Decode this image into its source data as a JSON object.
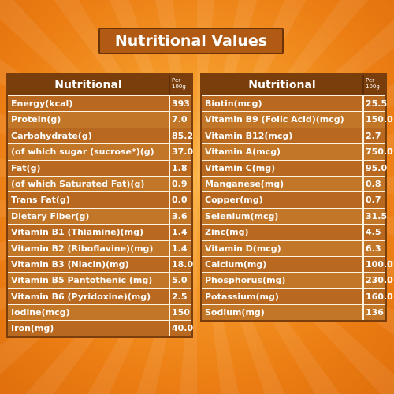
{
  "title": "Nutritional Values",
  "left_table": {
    "header": "Nutritional",
    "per_label": "Per 100g",
    "rows": [
      {
        "name": "Energy(kcal)",
        "value": "393"
      },
      {
        "name": "Protein(g)",
        "value": "7.0"
      },
      {
        "name": "Carbohydrate(g)",
        "value": "85.2"
      },
      {
        "name": "(of which sugar (sucrose*)(g)",
        "value": "37.0"
      },
      {
        "name": "Fat(g)",
        "value": "1.8"
      },
      {
        "name": "(of which Saturated Fat)(g)",
        "value": "0.9"
      },
      {
        "name": "Trans Fat(g)",
        "value": "0.0"
      },
      {
        "name": "Dietary Fiber(g)",
        "value": "3.6"
      },
      {
        "name": "Vitamin B1 (Thiamine)(mg)",
        "value": "1.4"
      },
      {
        "name": "Vitamin B2 (Riboflavine)(mg)",
        "value": "1.4"
      },
      {
        "name": "Vitamin B3 (Niacin)(mg)",
        "value": "18.0"
      },
      {
        "name": "Vitamin B5 Pantothenic (mg)",
        "value": "5.0"
      },
      {
        "name": "Vitamin B6 (Pyridoxine)(mg)",
        "value": "2.5"
      },
      {
        "name": "Iodine(mcg)",
        "value": "150"
      },
      {
        "name": "Iron(mg)",
        "value": "40.0"
      }
    ]
  },
  "right_table": {
    "header": "Nutritional",
    "per_label": "Per 100g",
    "rows": [
      {
        "name": "Biotin(mcg)",
        "value": "25.5"
      },
      {
        "name": "Vitamin B9 (Folic Acid)(mcg)",
        "value": "150.0"
      },
      {
        "name": "Vitamin B12(mcg)",
        "value": "2.7"
      },
      {
        "name": "Vitamin A(mcg)",
        "value": "750.0"
      },
      {
        "name": "Vitamin C(mg)",
        "value": "95.0"
      },
      {
        "name": "Manganese(mg)",
        "value": "0.8"
      },
      {
        "name": "Copper(mg)",
        "value": "0.7"
      },
      {
        "name": "Selenium(mcg)",
        "value": "31.5"
      },
      {
        "name": "Zinc(mg)",
        "value": "4.5"
      },
      {
        "name": "Vitamin D(mcg)",
        "value": "6.3"
      },
      {
        "name": "Calcium(mg)",
        "value": "100.0"
      },
      {
        "name": "Phosphorus(mg)",
        "value": "230.0"
      },
      {
        "name": "Potassium(mg)",
        "value": "160.0"
      },
      {
        "name": "Sodium(mg)",
        "value": "136"
      }
    ]
  }
}
